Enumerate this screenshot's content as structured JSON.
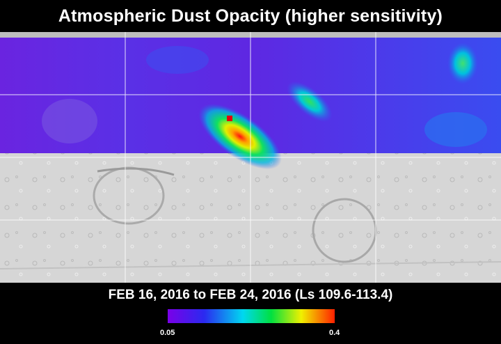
{
  "header": {
    "title": "Atmospheric Dust Opacity (higher sensitivity)"
  },
  "caption": {
    "date_range": "FEB 16, 2016 to FEB 24, 2016 (Ls 109.6-113.4)"
  },
  "colorbar": {
    "min_label": "0.05",
    "max_label": "0.4",
    "colors": [
      "#7a00e8",
      "#2a2af0",
      "#00d8f0",
      "#00e040",
      "#f0f000",
      "#ff2000"
    ]
  },
  "map": {
    "surface_color": "#d6d6d6",
    "grid_color": "#ffffff",
    "hotspots": [
      {
        "name": "dust-cloud-center",
        "value": 0.4
      },
      {
        "name": "dust-cloud-northeast",
        "value": 0.22
      },
      {
        "name": "dust-cloud-east",
        "value": 0.2
      }
    ]
  }
}
